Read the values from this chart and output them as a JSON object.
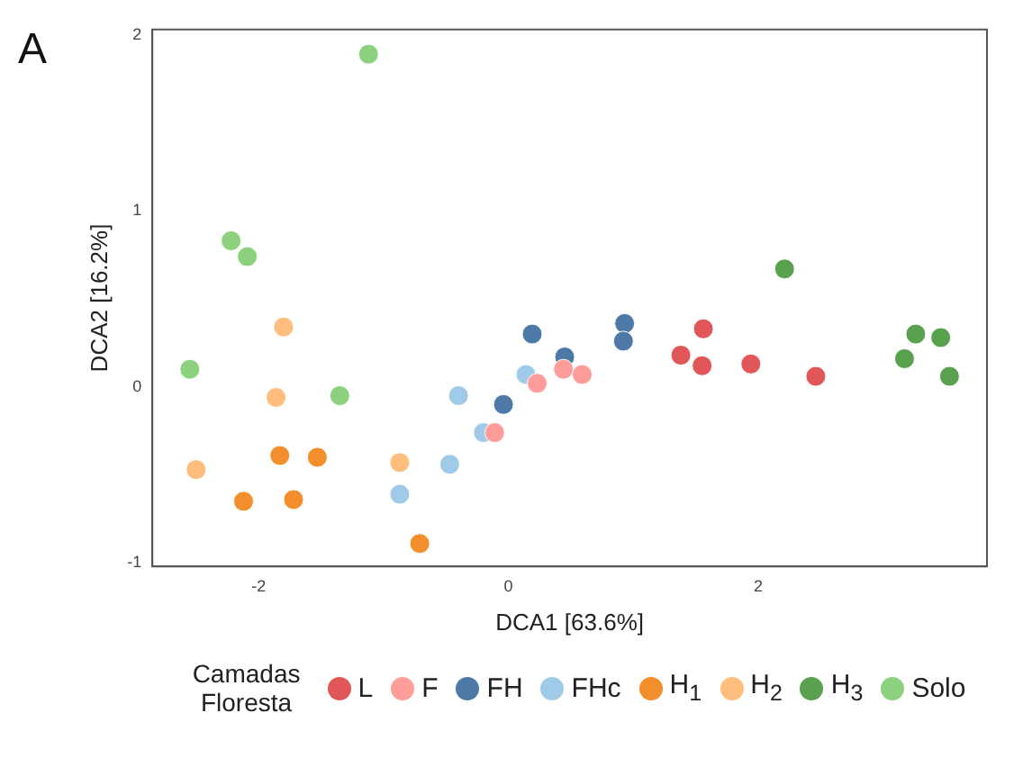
{
  "chart_data": {
    "type": "scatter",
    "xlabel": "DCA1 [63.6%]",
    "ylabel": "DCA2 [16.2%]",
    "legend_title": "Camadas Floresta",
    "annotations": [
      "A"
    ],
    "legend": "bottom",
    "marker": "circle",
    "grid": false,
    "xlim": [
      -2.85,
      3.83
    ],
    "xticks": [
      -2,
      0,
      2
    ],
    "ylim": [
      -1.02,
      2.03
    ],
    "yticks": [
      -1,
      0,
      1,
      2
    ],
    "series": [
      {
        "name": "L",
        "color": "#e15759",
        "x": [
          1.38,
          1.56,
          1.55,
          1.94,
          2.46
        ],
        "values": [
          0.18,
          0.33,
          0.12,
          0.13,
          0.06
        ]
      },
      {
        "name": "F",
        "color": "#ff9d9a",
        "x": [
          -0.11,
          0.23,
          0.44,
          0.59
        ],
        "values": [
          -0.26,
          0.02,
          0.1,
          0.07
        ]
      },
      {
        "name": "FH",
        "color": "#4e79a7",
        "x": [
          -0.04,
          0.19,
          0.45,
          0.93,
          0.92
        ],
        "values": [
          -0.1,
          0.3,
          0.17,
          0.36,
          0.26
        ]
      },
      {
        "name": "FHc",
        "color": "#a0cbe8",
        "x": [
          -0.4,
          -0.2,
          -0.47,
          -0.87,
          0.14
        ],
        "values": [
          -0.05,
          -0.26,
          -0.44,
          -0.61,
          0.07
        ]
      },
      {
        "name": "H$_{1}$",
        "color": "#f28e2b",
        "x": [
          -1.83,
          -1.53,
          -2.12,
          -1.72,
          -0.71
        ],
        "values": [
          -0.39,
          -0.4,
          -0.65,
          -0.64,
          -0.89
        ]
      },
      {
        "name": "H$_{2}$",
        "color": "#ffbe7d",
        "x": [
          -1.8,
          -1.86,
          -2.5,
          -0.87
        ],
        "values": [
          0.34,
          -0.06,
          -0.47,
          -0.43
        ]
      },
      {
        "name": "H$_{3}$",
        "color": "#59a14f",
        "x": [
          2.21,
          3.26,
          3.46,
          3.17,
          3.53
        ],
        "values": [
          0.67,
          0.3,
          0.28,
          0.16,
          0.06
        ]
      },
      {
        "name": "Solo",
        "color": "#8cd17d",
        "x": [
          -1.12,
          -2.22,
          -2.09,
          -2.55,
          -1.35
        ],
        "values": [
          1.89,
          0.83,
          0.74,
          0.1,
          -0.05
        ]
      }
    ]
  }
}
